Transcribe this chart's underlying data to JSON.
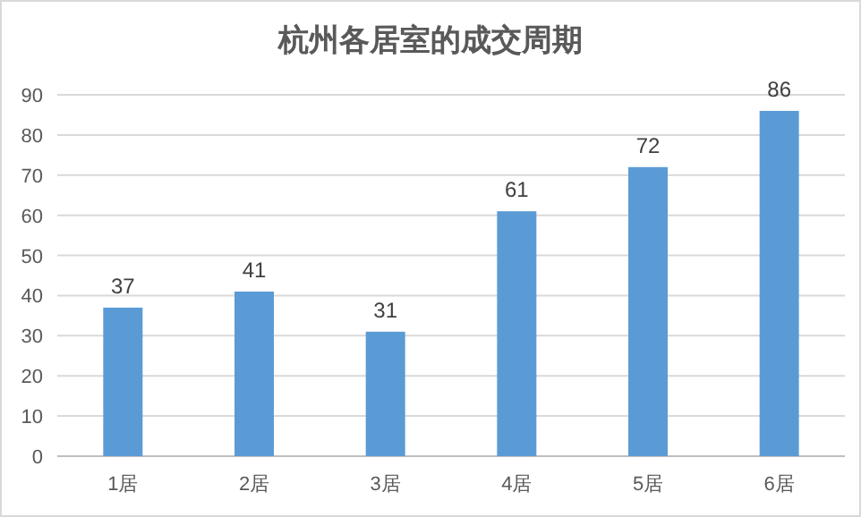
{
  "chart_data": {
    "type": "bar",
    "title": "杭州各居室的成交周期",
    "categories": [
      "1居",
      "2居",
      "3居",
      "4居",
      "5居",
      "6居"
    ],
    "values": [
      37,
      41,
      31,
      61,
      72,
      86
    ],
    "color": "#5b9bd5",
    "ylim": [
      0,
      90
    ],
    "yticks": [
      0,
      10,
      20,
      30,
      40,
      50,
      60,
      70,
      80,
      90
    ],
    "grid": "y",
    "data_labels": true
  }
}
